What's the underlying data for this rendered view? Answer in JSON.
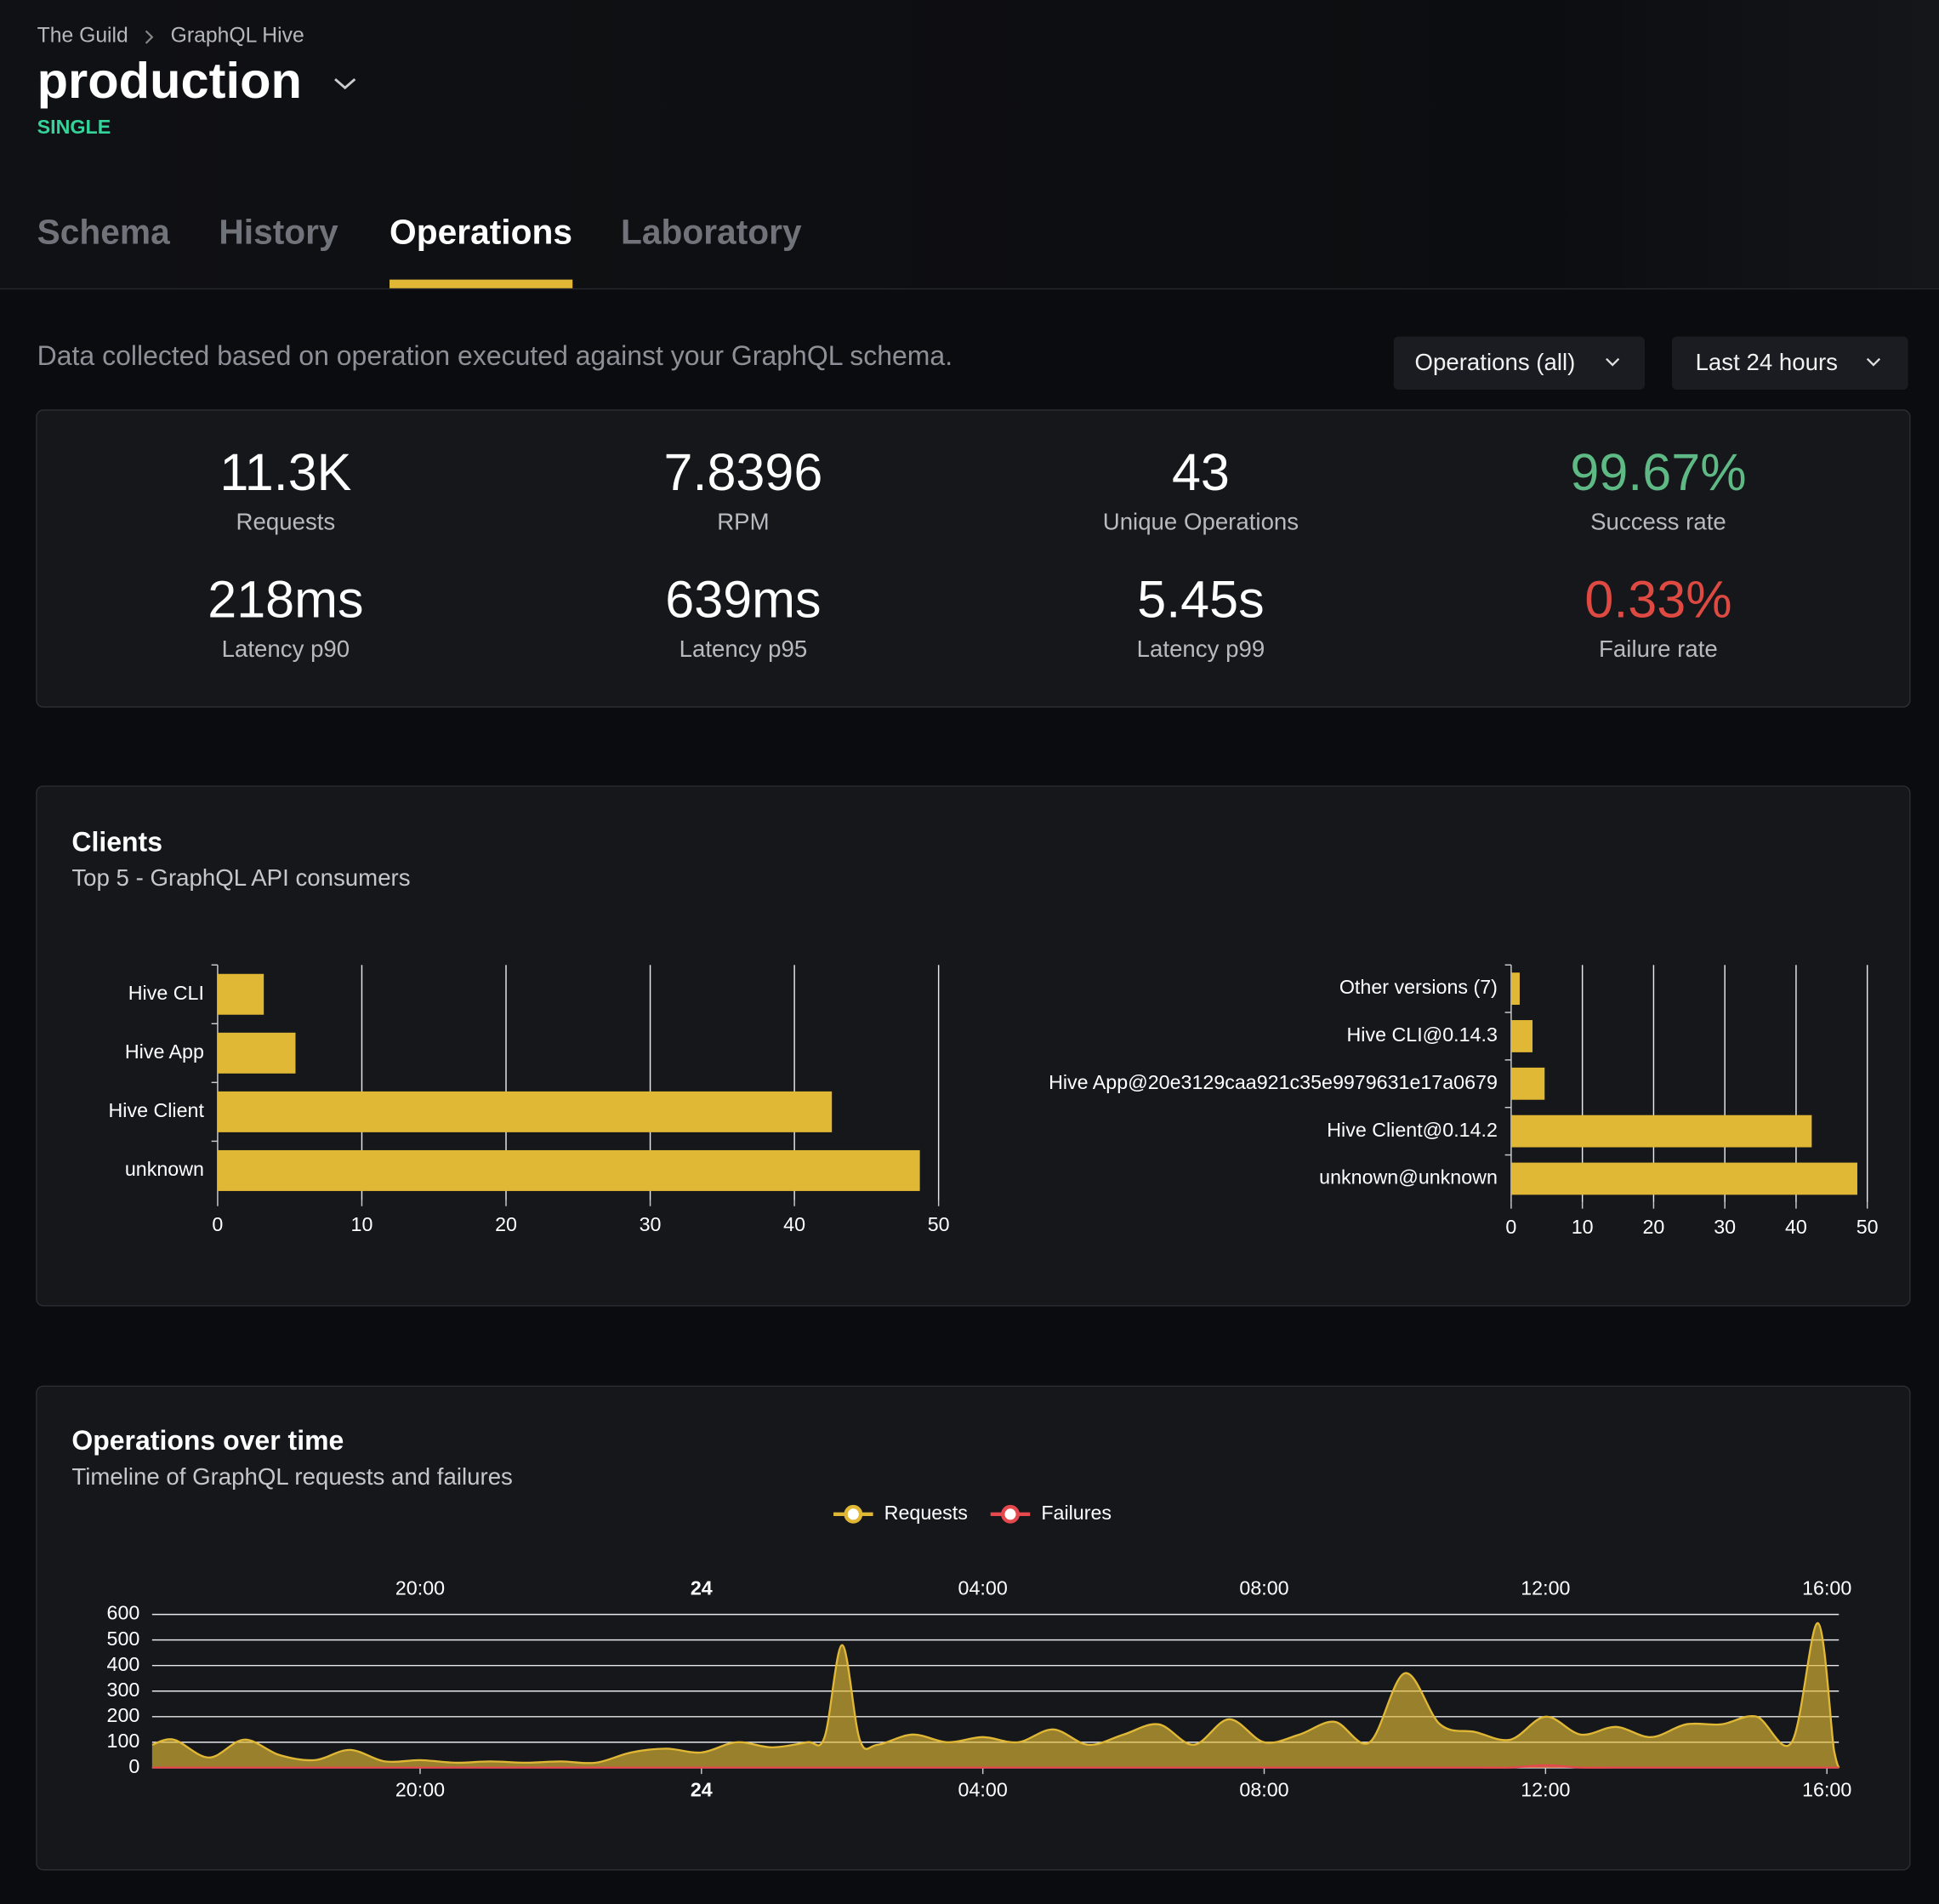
{
  "breadcrumb": [
    "The Guild",
    "GraphQL Hive"
  ],
  "header": {
    "title": "production",
    "badge": "SINGLE"
  },
  "tabs": [
    {
      "label": "Schema"
    },
    {
      "label": "History"
    },
    {
      "label": "Operations",
      "active": true
    },
    {
      "label": "Laboratory"
    }
  ],
  "description": "Data collected based on operation executed against your GraphQL schema.",
  "filters": [
    "Operations (all)",
    "Last 24 hours"
  ],
  "stats": [
    {
      "value": "11.3K",
      "label": "Requests"
    },
    {
      "value": "7.8396",
      "label": "RPM"
    },
    {
      "value": "43",
      "label": "Unique Operations"
    },
    {
      "value": "99.67%",
      "label": "Success rate",
      "color": "#5fb984"
    },
    {
      "value": "218ms",
      "label": "Latency p90"
    },
    {
      "value": "639ms",
      "label": "Latency p95"
    },
    {
      "value": "5.45s",
      "label": "Latency p99"
    },
    {
      "value": "0.33%",
      "label": "Failure rate",
      "color": "#de4a42"
    }
  ],
  "clients_panel": {
    "title": "Clients",
    "subtitle": "Top 5 - GraphQL API consumers"
  },
  "chart_data": [
    {
      "type": "bar",
      "orientation": "horizontal",
      "categories": [
        "Hive CLI",
        "Hive App",
        "Hive Client",
        "unknown"
      ],
      "values": [
        3.2,
        5.4,
        42.6,
        48.7
      ],
      "color": "#e1b835",
      "xlim": [
        0,
        50
      ],
      "xticks": [
        0,
        10,
        20,
        30,
        40,
        50
      ],
      "grid": true
    },
    {
      "type": "bar",
      "orientation": "horizontal",
      "categories": [
        "Other versions (7)",
        "Hive CLI@0.14.3",
        "Hive App@20e3129caa921c35e9979631e17a0679",
        "Hive Client@0.14.2",
        "unknown@unknown"
      ],
      "values": [
        1.2,
        3.0,
        4.7,
        42.2,
        48.6
      ],
      "color": "#e1b835",
      "xlim": [
        0,
        50
      ],
      "xticks": [
        0,
        10,
        20,
        30,
        40,
        50
      ],
      "grid": true
    },
    {
      "type": "area",
      "title": "Operations over time",
      "subtitle": "Timeline of GraphQL requests and failures",
      "x": [
        16.19,
        16.5,
        17,
        17.5,
        18,
        18.5,
        19,
        19.5,
        20,
        20.5,
        21,
        21.5,
        22,
        22.5,
        23,
        23.5,
        24,
        24.5,
        25,
        25.5,
        25.75,
        26,
        26.25,
        26.5,
        27,
        27.5,
        28,
        28.5,
        29,
        29.5,
        30,
        30.5,
        31,
        31.5,
        32,
        32.5,
        33,
        33.5,
        34,
        34.5,
        35,
        35.5,
        36,
        36.5,
        37,
        37.5,
        38,
        38.5,
        39,
        39.5,
        39.87,
        40.1,
        40.17
      ],
      "series": [
        {
          "name": "Requests",
          "color": "#e1b835",
          "values": [
            90,
            110,
            40,
            110,
            50,
            30,
            70,
            25,
            30,
            20,
            25,
            20,
            25,
            20,
            60,
            75,
            60,
            100,
            80,
            100,
            120,
            480,
            110,
            90,
            130,
            100,
            120,
            100,
            150,
            90,
            130,
            170,
            90,
            190,
            100,
            130,
            180,
            100,
            370,
            170,
            140,
            110,
            200,
            130,
            160,
            120,
            170,
            170,
            200,
            100,
            566,
            70,
            0
          ]
        },
        {
          "name": "Failures",
          "color": "#e5484d",
          "values": [
            1,
            1,
            1,
            1,
            1,
            1,
            1,
            1,
            1,
            1,
            1,
            1,
            1,
            1,
            1,
            1,
            1,
            1,
            1,
            1,
            1,
            1,
            1,
            1,
            1,
            1,
            1,
            1,
            1,
            1,
            1,
            1,
            1,
            1,
            1,
            1,
            1,
            1,
            1,
            1,
            1,
            1,
            10,
            1,
            1,
            1,
            1,
            1,
            1,
            1,
            1,
            1,
            1
          ]
        }
      ],
      "xlim": [
        16.19,
        40.17
      ],
      "xticks": [
        {
          "value": 20,
          "label": "20:00"
        },
        24,
        {
          "value": 28,
          "label": "04:00"
        },
        {
          "value": 32,
          "label": "08:00"
        },
        {
          "value": 36,
          "label": "12:00"
        },
        {
          "value": 40,
          "label": "16:00"
        }
      ],
      "ylim": [
        0,
        600
      ],
      "yticks": [
        0,
        100,
        200,
        300,
        400,
        500,
        600
      ],
      "grid": true,
      "legend": "top"
    }
  ]
}
